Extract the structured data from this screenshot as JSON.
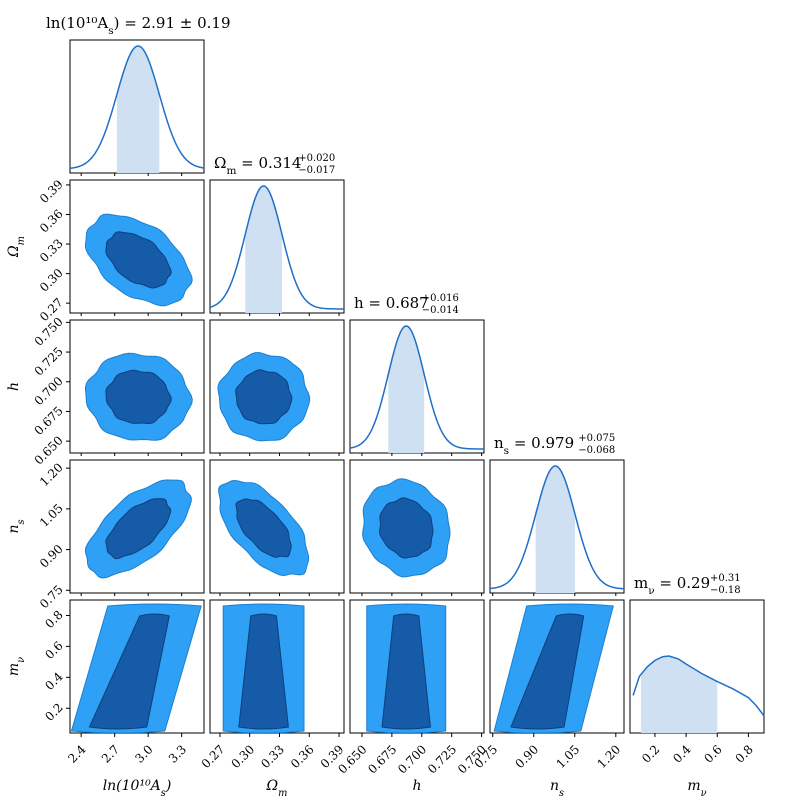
{
  "colors": {
    "line": "#1f6fc5",
    "fill_1d": "#cfe0f3",
    "inner": "#155ba8",
    "outer": "#2ea1f7",
    "inner_edge": "#0f3f7a",
    "outer_edge": "#1a7fd0"
  },
  "chart_data": {
    "type": "corner",
    "parameters": [
      {
        "key": "lnAs",
        "axis_label": "ln(10¹⁰A_s)",
        "lim": [
          2.3,
          3.5
        ],
        "ticks": [
          2.4,
          2.7,
          3.0,
          3.3
        ],
        "tick_labels": [
          "2.4",
          "2.7",
          "3.0",
          "3.3"
        ],
        "mean": 2.91,
        "sigma": 0.19,
        "title": {
          "main": "ln(10¹⁰A_s) = 2.91 ± 0.19",
          "up": "",
          "down": ""
        }
      },
      {
        "key": "Om",
        "axis_label": "Ω_m",
        "lim": [
          0.26,
          0.395
        ],
        "ticks": [
          0.27,
          0.3,
          0.33,
          0.36,
          0.39
        ],
        "tick_labels": [
          "0.27",
          "0.30",
          "0.33",
          "0.36",
          "0.39"
        ],
        "mean": 0.314,
        "sigma": 0.0185,
        "title": {
          "main": "Ω_m = 0.314",
          "up": "+0.020",
          "down": "−0.017"
        }
      },
      {
        "key": "h",
        "axis_label": "h",
        "lim": [
          0.64,
          0.752
        ],
        "ticks": [
          0.65,
          0.675,
          0.7,
          0.725,
          0.75
        ],
        "tick_labels": [
          "0.650",
          "0.675",
          "0.700",
          "0.725",
          "0.750"
        ],
        "mean": 0.687,
        "sigma": 0.015,
        "title": {
          "main": "h = 0.687",
          "up": "+0.016",
          "down": "−0.014"
        }
      },
      {
        "key": "ns",
        "axis_label": "n_s",
        "lim": [
          0.74,
          1.23
        ],
        "ticks": [
          0.75,
          0.9,
          1.05,
          1.2
        ],
        "tick_labels": [
          "0.75",
          "0.90",
          "1.05",
          "1.20"
        ],
        "mean": 0.979,
        "sigma": 0.072,
        "title": {
          "main": "n_s = 0.979",
          "up": "+0.075",
          "down": "−0.068"
        }
      },
      {
        "key": "mnu",
        "axis_label": "m_ν",
        "lim": [
          0.04,
          0.9
        ],
        "ticks": [
          0.2,
          0.4,
          0.6,
          0.8
        ],
        "tick_labels": [
          "0.2",
          "0.4",
          "0.6",
          "0.8"
        ],
        "mean": 0.29,
        "sigma": 0.25,
        "title": {
          "main": "m_ν = 0.29",
          "up": "+0.31",
          "down": "−0.18"
        }
      }
    ],
    "x_axis_titles": [
      "ln(10¹⁰A_s)",
      "Ω_m",
      "h",
      "n_s",
      "m_ν"
    ],
    "y_axis_titles": [
      "Ω_m",
      "h",
      "n_s",
      "m_ν"
    ],
    "mnu_x_tick_labels": [
      "0.2",
      "0.4",
      "0.6",
      "0.8"
    ],
    "mnu_y_tick_labels": [
      "0.2",
      "0.4",
      "0.6",
      "0.8"
    ],
    "mnu_posterior_1d": {
      "x": [
        0.06,
        0.1,
        0.15,
        0.2,
        0.25,
        0.29,
        0.35,
        0.4,
        0.5,
        0.6,
        0.7,
        0.8,
        0.85,
        0.9
      ],
      "density": [
        0.46,
        0.72,
        0.85,
        0.94,
        0.99,
        1.0,
        0.96,
        0.89,
        0.76,
        0.65,
        0.55,
        0.43,
        0.32,
        0.18
      ],
      "shaded_interval": [
        0.11,
        0.6
      ]
    },
    "correlations": {
      "lnAs|Om": -0.45,
      "lnAs|h": -0.05,
      "lnAs|ns": 0.62,
      "lnAs|mnu": 0.78,
      "Om|h": 0.0,
      "Om|ns": -0.6,
      "Om|mnu": 0.0,
      "h|ns": -0.12,
      "h|mnu": 0.0,
      "ns|mnu": 0.75
    },
    "credible_levels": [
      "68%",
      "95%"
    ]
  }
}
